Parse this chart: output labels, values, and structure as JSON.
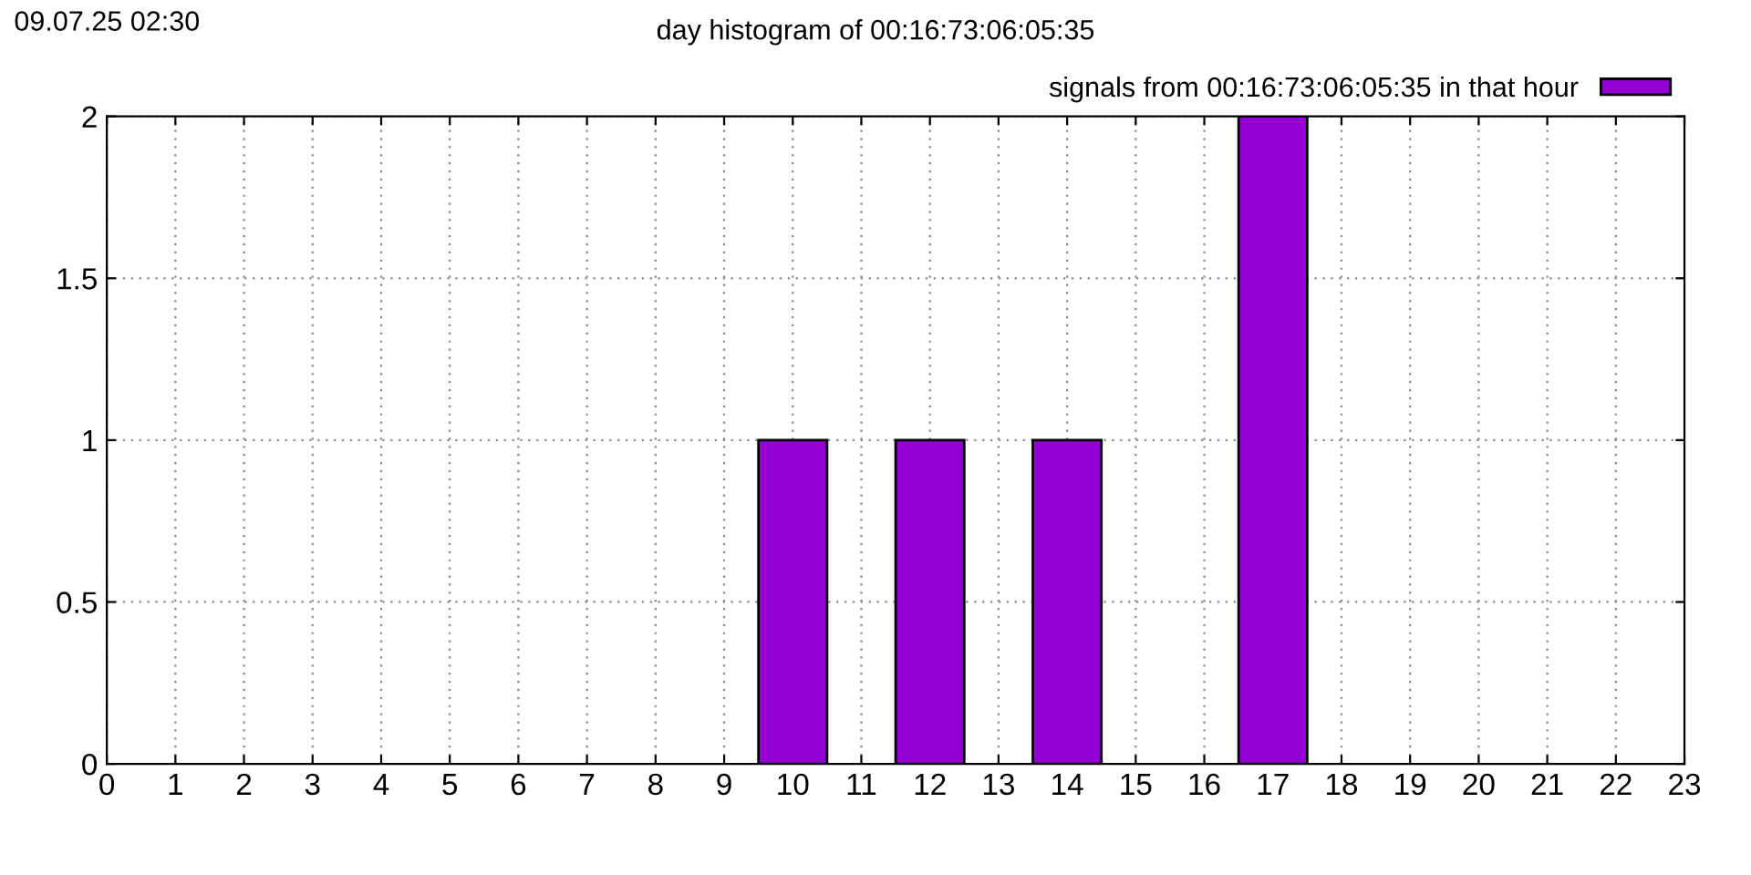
{
  "chart_data": {
    "type": "bar",
    "title": "day histogram of 00:16:73:06:05:35",
    "annotations": [
      "09.07.25 02:30"
    ],
    "x": [
      0,
      1,
      2,
      3,
      4,
      5,
      6,
      7,
      8,
      9,
      10,
      11,
      12,
      13,
      14,
      15,
      16,
      17,
      18,
      19,
      20,
      21,
      22
    ],
    "series": [
      {
        "name": "signals from 00:16:73:06:05:35 in that hour",
        "color": "#9400d3",
        "values": [
          0,
          0,
          0,
          0,
          0,
          0,
          0,
          0,
          0,
          0,
          1,
          0,
          1,
          0,
          1,
          0,
          0,
          2,
          0,
          0,
          0,
          0,
          0
        ]
      }
    ],
    "xlim": [
      0,
      23
    ],
    "xticks": [
      0,
      1,
      2,
      3,
      4,
      5,
      6,
      7,
      8,
      9,
      10,
      11,
      12,
      13,
      14,
      15,
      16,
      17,
      18,
      19,
      20,
      21,
      22,
      23
    ],
    "ylim": [
      0,
      2
    ],
    "yticks": [
      0,
      0.5,
      1,
      1.5,
      2
    ],
    "grid": true,
    "legend": "top right"
  }
}
